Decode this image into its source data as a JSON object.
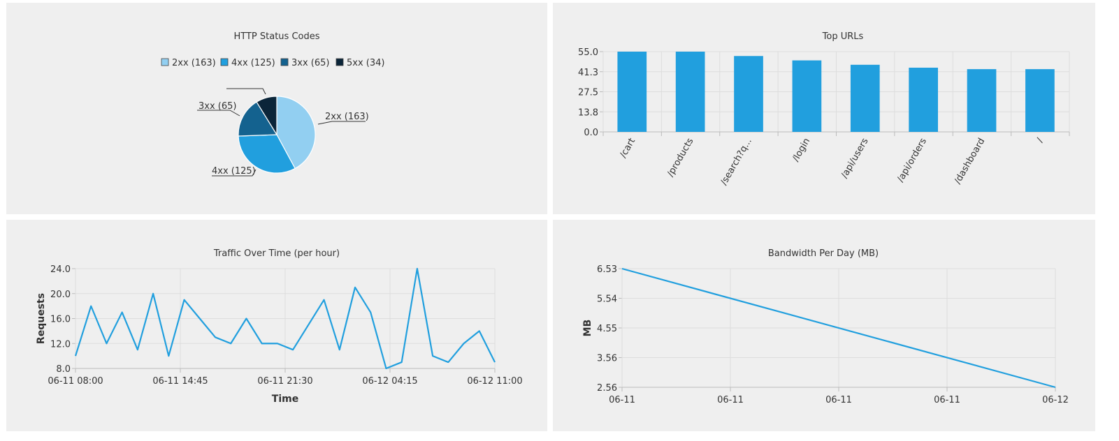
{
  "colors": {
    "panel_bg": "#efefef",
    "series": "#219fde",
    "pie": [
      "#92cff1",
      "#219fde",
      "#14628f",
      "#0b2539"
    ],
    "grid": "#dddddd",
    "axis": "#bbbbbb",
    "text": "#333333"
  },
  "chart_data": [
    {
      "type": "pie",
      "title": "HTTP Status Codes",
      "legend_position": "top",
      "slices": [
        {
          "label": "2xx (163)",
          "value": 163
        },
        {
          "label": "4xx (125)",
          "value": 125
        },
        {
          "label": "3xx (65)",
          "value": 65
        },
        {
          "label": "5xx (34)",
          "value": 34
        }
      ],
      "slice_labels": [
        "2xx (163)",
        "4xx (125)",
        "3xx (65)",
        ""
      ]
    },
    {
      "type": "bar",
      "title": "Top URLs",
      "categories": [
        "/cart",
        "/products",
        "/search?q...",
        "/login",
        "/api/users",
        "/api/orders",
        "/dashboard",
        "/"
      ],
      "values": [
        55,
        55,
        52,
        49,
        46,
        44,
        43,
        43
      ],
      "yticks": [
        "55.0",
        "41.3",
        "27.5",
        "13.8",
        "0.0"
      ],
      "ylim": [
        0,
        55
      ],
      "grid": true
    },
    {
      "type": "line",
      "title": "Traffic Over Time (per hour)",
      "xlabel": "Time",
      "ylabel": "Requests",
      "xticks": [
        "06-11 08:00",
        "06-11 14:45",
        "06-11 21:30",
        "06-12 04:15",
        "06-12 11:00"
      ],
      "yticks": [
        "24.0",
        "20.0",
        "16.0",
        "12.0",
        "8.0"
      ],
      "ylim": [
        8,
        24
      ],
      "values": [
        10,
        18,
        12,
        17,
        11,
        20,
        10,
        19,
        16,
        13,
        12,
        16,
        12,
        12,
        11,
        15,
        19,
        11,
        21,
        17,
        8,
        9,
        24,
        10,
        9,
        12,
        14,
        9
      ],
      "grid": true
    },
    {
      "type": "line",
      "title": "Bandwidth Per Day (MB)",
      "xlabel": "",
      "ylabel": "MB",
      "xticks": [
        "06-11",
        "06-11",
        "06-11",
        "06-11",
        "06-12"
      ],
      "yticks": [
        "6.53",
        "5.54",
        "4.55",
        "3.56",
        "2.56"
      ],
      "ylim": [
        2.56,
        6.53
      ],
      "values": [
        6.53,
        2.56
      ],
      "grid": true
    }
  ]
}
